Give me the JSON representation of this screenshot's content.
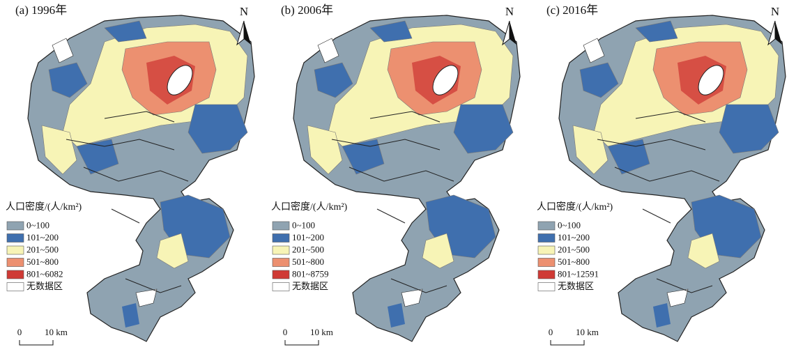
{
  "panels": [
    {
      "title": "(a) 1996年",
      "north": "N",
      "legend": {
        "title": "人口密度/(人/km²)",
        "items": [
          {
            "label": "0~100",
            "color": "#8fa3b1"
          },
          {
            "label": "101~200",
            "color": "#3f6fae"
          },
          {
            "label": "201~500",
            "color": "#f7f4b6"
          },
          {
            "label": "501~800",
            "color": "#ec9070"
          },
          {
            "label": "801~6082",
            "color": "#cf3a35"
          },
          {
            "label": "无数据区",
            "color": "#ffffff"
          }
        ]
      },
      "scale": {
        "start": "0",
        "end": "10 km"
      }
    },
    {
      "title": "(b) 2006年",
      "north": "N",
      "legend": {
        "title": "人口密度/(人/km²)",
        "items": [
          {
            "label": "0~100",
            "color": "#8fa3b1"
          },
          {
            "label": "101~200",
            "color": "#3f6fae"
          },
          {
            "label": "201~500",
            "color": "#f7f4b6"
          },
          {
            "label": "501~800",
            "color": "#ec9070"
          },
          {
            "label": "801~8759",
            "color": "#cf3a35"
          },
          {
            "label": "无数据区",
            "color": "#ffffff"
          }
        ]
      },
      "scale": {
        "start": "0",
        "end": "10 km"
      }
    },
    {
      "title": "(c) 2016年",
      "north": "N",
      "legend": {
        "title": "人口密度/(人/km²)",
        "items": [
          {
            "label": "0~100",
            "color": "#8fa3b1"
          },
          {
            "label": "101~200",
            "color": "#3f6fae"
          },
          {
            "label": "201~500",
            "color": "#f7f4b6"
          },
          {
            "label": "501~800",
            "color": "#ec9070"
          },
          {
            "label": "801~12591",
            "color": "#cf3a35"
          },
          {
            "label": "无数据区",
            "color": "#ffffff"
          }
        ]
      },
      "scale": {
        "start": "0",
        "end": "10 km"
      }
    }
  ]
}
